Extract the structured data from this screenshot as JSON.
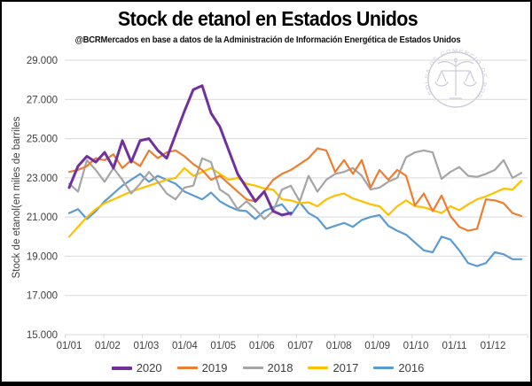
{
  "header": {
    "title": "Stock de etanol en Estados Unidos",
    "subtitle": "@BCRMercados en base a datos de la Administración de Información Energética de Estados Unidos"
  },
  "watermark": {
    "text": "BOLSA DE COMERCIO DE ROSARIO",
    "color": "#c9c9d8"
  },
  "chart_data": {
    "type": "line",
    "title": "Stock de etanol en Estados Unidos",
    "subtitle": "@BCRMercados en base a datos de la Administración de Información Energética de Estados Unidos",
    "xlabel": "",
    "ylabel": "Stock de etanol(en miles de barriles",
    "x_unit": "semana (fecha dd/mm)",
    "x_tick_labels": [
      "01/01",
      "01/02",
      "01/03",
      "01/04",
      "01/05",
      "01/06",
      "01/07",
      "01/08",
      "01/09",
      "01/10",
      "01/11",
      "01/12"
    ],
    "y_tick_labels": [
      "29.000",
      "27.000",
      "25.000",
      "23.000",
      "21.000",
      "19.000",
      "17.000",
      "15.000"
    ],
    "ylim": [
      15000,
      29000
    ],
    "y_step": 2000,
    "grid": true,
    "grid_color": "#d9d9d9",
    "axis_text_color": "#404040",
    "legend_position": "bottom",
    "points_per_year": 52,
    "series": [
      {
        "name": "2020",
        "color": "#7030A0",
        "width": 3,
        "values": [
          22500,
          23600,
          24100,
          23800,
          24300,
          23500,
          24900,
          23800,
          24900,
          25000,
          24400,
          24000,
          25200,
          26400,
          27500,
          27700,
          26300,
          25600,
          24400,
          23200,
          22500,
          21800,
          22300,
          21300,
          21100,
          21200
        ]
      },
      {
        "name": "2019",
        "color": "#ED7D31",
        "width": 2.2,
        "values": [
          23300,
          23400,
          23600,
          24000,
          23900,
          24200,
          23500,
          23900,
          23600,
          24400,
          24000,
          24300,
          24400,
          24100,
          23700,
          23400,
          22900,
          23100,
          22700,
          22300,
          21900,
          21800,
          22300,
          22900,
          23200,
          23400,
          23700,
          24000,
          24500,
          24400,
          23300,
          23900,
          23200,
          23900,
          22500,
          23400,
          22900,
          23400,
          23100,
          21600,
          22200,
          21300,
          22100,
          21050,
          20500,
          20300,
          20400,
          21900,
          21850,
          21700,
          21200,
          21050
        ]
      },
      {
        "name": "2018",
        "color": "#A5A5A5",
        "width": 2.2,
        "values": [
          22700,
          22300,
          23900,
          23400,
          22800,
          23500,
          22900,
          22200,
          22700,
          23300,
          22800,
          22200,
          21900,
          22500,
          22600,
          24000,
          23800,
          22400,
          22100,
          21400,
          21800,
          21400,
          20900,
          21300,
          22400,
          22600,
          21800,
          23100,
          22300,
          22900,
          23200,
          23300,
          23500,
          23100,
          22400,
          22500,
          22800,
          23000,
          24050,
          24300,
          24400,
          24300,
          22950,
          23300,
          23550,
          23100,
          23050,
          23200,
          23400,
          23900,
          23000,
          23250
        ]
      },
      {
        "name": "2017",
        "color": "#FFC000",
        "width": 2.2,
        "values": [
          20000,
          20500,
          21000,
          21400,
          21700,
          21900,
          22100,
          22300,
          22450,
          22600,
          22750,
          22900,
          23000,
          23500,
          23100,
          23300,
          23500,
          23200,
          22900,
          23000,
          22700,
          22600,
          22450,
          22400,
          21900,
          21850,
          21700,
          21750,
          21550,
          21900,
          22100,
          22200,
          21950,
          21800,
          21650,
          21550,
          21100,
          21550,
          21850,
          21550,
          21500,
          21350,
          21200,
          21550,
          21350,
          21650,
          21900,
          22050,
          22250,
          22450,
          22400,
          22850
        ]
      },
      {
        "name": "2016",
        "color": "#5B9BD5",
        "width": 2.2,
        "values": [
          21200,
          21400,
          20900,
          21300,
          21800,
          22200,
          22600,
          22900,
          23200,
          22800,
          23100,
          22900,
          22700,
          22300,
          22100,
          21900,
          22250,
          21800,
          21550,
          21350,
          21300,
          20900,
          21300,
          21500,
          21650,
          21100,
          21750,
          21200,
          20950,
          20400,
          20550,
          20700,
          20500,
          20850,
          21000,
          21100,
          20550,
          20300,
          20100,
          19700,
          19300,
          19200,
          20000,
          19850,
          19300,
          18650,
          18500,
          18650,
          19200,
          19100,
          18850,
          18850
        ]
      }
    ]
  }
}
